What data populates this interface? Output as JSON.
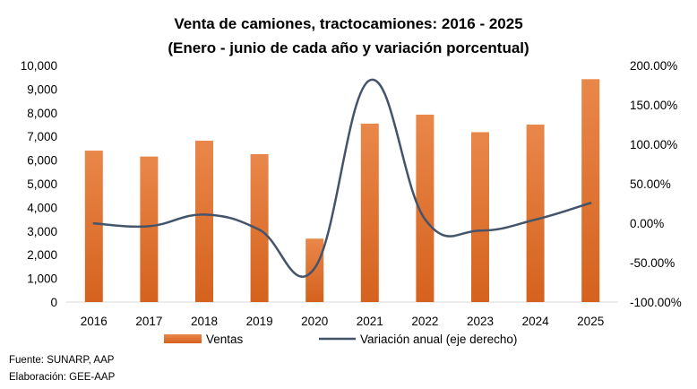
{
  "chart_data": {
    "type": "bar",
    "title": "Venta de camiones, tractocamiones: 2016 - 2025",
    "subtitle": "(Enero - junio de cada año y variación porcentual)",
    "categories": [
      "2016",
      "2017",
      "2018",
      "2019",
      "2020",
      "2021",
      "2022",
      "2023",
      "2024",
      "2025"
    ],
    "series": [
      {
        "name": "Ventas",
        "type": "bar",
        "axis": "left",
        "color": "#E07B39",
        "values": [
          6400,
          6150,
          6820,
          6250,
          2680,
          7540,
          7920,
          7180,
          7500,
          9420
        ]
      },
      {
        "name": "Variación anual (eje derecho)",
        "type": "line",
        "axis": "right",
        "color": "#44546A",
        "values": [
          -0.2,
          -3.9,
          10.9,
          -8.4,
          -57.1,
          181.3,
          5.0,
          -9.3,
          4.5,
          25.6
        ]
      }
    ],
    "y_left": {
      "min": 0,
      "max": 10000,
      "tick_labels": [
        "0",
        "1,000",
        "2,000",
        "3,000",
        "4,000",
        "5,000",
        "6,000",
        "7,000",
        "8,000",
        "9,000",
        "10,000"
      ]
    },
    "y_right": {
      "min": -100,
      "max": 200,
      "tick_labels": [
        "-100.00%",
        "-50.00%",
        "0.00%",
        "50.00%",
        "100.00%",
        "150.00%",
        "200.00%"
      ]
    },
    "grid": false,
    "legend_position": "bottom"
  },
  "footnotes": {
    "source": "Fuente: SUNARP, AAP",
    "prepared_by": "Elaboración: GEE-AAP"
  }
}
